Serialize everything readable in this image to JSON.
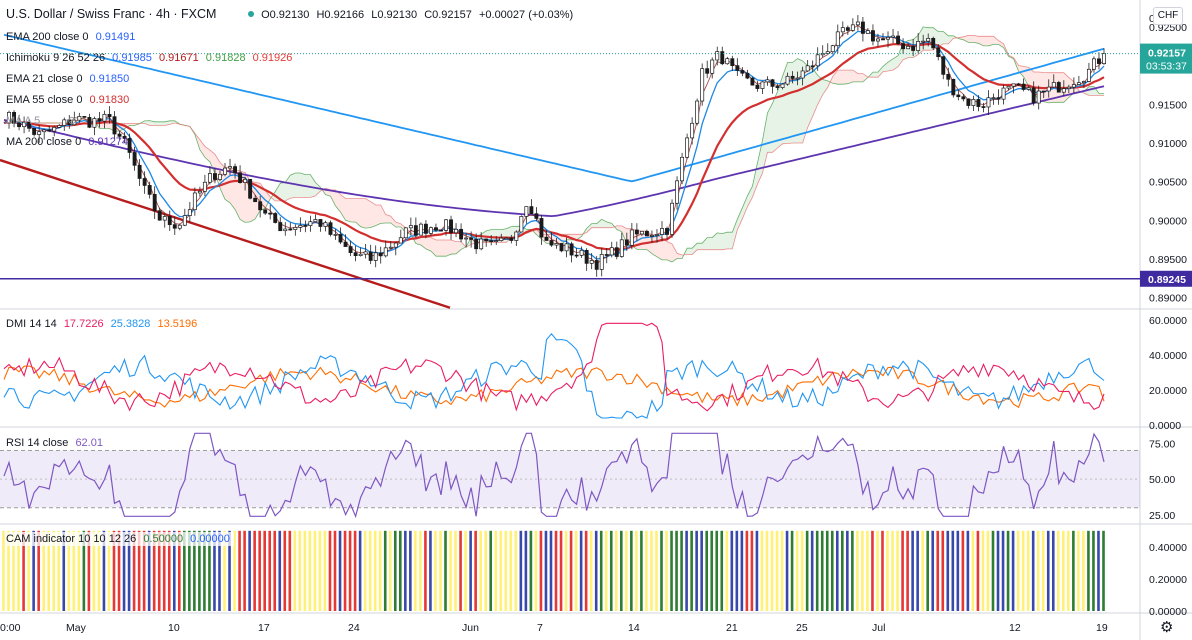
{
  "header": {
    "symbol_title": "U.S. Dollar / Swiss Franc · 4h · FXCM",
    "ohlc": {
      "open": "O0.92130",
      "high": "H0.92166",
      "low": "L0.92130",
      "close": "C0.92157",
      "change": "+0.00027 (+0.03%)"
    },
    "currency_button": "CHF"
  },
  "indicators": {
    "ema200": {
      "label": "EMA 200 close 0",
      "value": "0.91491",
      "color": "#2196f3"
    },
    "ichimoku": {
      "label": "Ichimoku 9 26 52 26",
      "v1": "0.91985",
      "v2": "0.91671",
      "v3": "0.91828",
      "v4": "0.91926"
    },
    "ema21": {
      "label": "EMA 21 close 0",
      "value": "0.91850",
      "color": "#2196f3"
    },
    "ema55": {
      "label": "EMA 55 close 0",
      "value": "0.91830",
      "color": "#d32f2f"
    },
    "ma5": {
      "label": "MA A 5"
    },
    "ma200": {
      "label": "MA 200 close 0",
      "value": "0.91274",
      "color": "#5e35b1"
    },
    "dmi": {
      "label": "DMI 14 14",
      "plus": "17.7226",
      "minus": "25.3828",
      "adx": "13.5196"
    },
    "rsi": {
      "label": "RSI 14 close",
      "value": "62.01"
    },
    "cam": {
      "label": "CAM indicator 10 10 12 26",
      "v1": "0.50000",
      "v2": "0.00000"
    }
  },
  "price_axis": {
    "ticks": [
      "0.92500",
      "0.92000",
      "0.91500",
      "0.91000",
      "0.90500",
      "0.90000",
      "0.89500",
      "0.89000"
    ],
    "top_tick": "0",
    "current_price": "0.92157",
    "countdown": "03:53:37",
    "horizontal_level": "0.89245",
    "current_price_color": "#26a69a",
    "level_color": "#3f2a9f"
  },
  "dmi_axis": [
    "60.0000",
    "40.0000",
    "20.0000",
    "0.0000"
  ],
  "rsi_axis": [
    "75.00",
    "50.00",
    "25.00"
  ],
  "cam_axis": [
    "0.40000",
    "0.20000",
    "0.00000"
  ],
  "time_axis": [
    "0:00",
    "May",
    "10",
    "17",
    "24",
    "Jun",
    "7",
    "14",
    "21",
    "25",
    "Jul",
    "12",
    "19"
  ],
  "chart_data": [
    {
      "type": "candlestick",
      "title": "U.S. Dollar / Swiss Franc · 4h · FXCM",
      "ylim": [
        0.8888,
        0.9285
      ],
      "horizontal_line": 0.89245,
      "x_labels": [
        "0:00",
        "May",
        "10",
        "17",
        "24",
        "Jun",
        "7",
        "14",
        "21",
        "25",
        "Jul",
        "12",
        "19"
      ],
      "close_path": [
        0.9135,
        0.9125,
        0.911,
        0.9118,
        0.9132,
        0.9128,
        0.913,
        0.9095,
        0.904,
        0.9,
        0.8995,
        0.903,
        0.906,
        0.907,
        0.904,
        0.9005,
        0.899,
        0.8995,
        0.9,
        0.8975,
        0.8955,
        0.895,
        0.8965,
        0.8985,
        0.899,
        0.8995,
        0.8985,
        0.897,
        0.8965,
        0.8975,
        0.903,
        0.897,
        0.8965,
        0.8955,
        0.8945,
        0.896,
        0.898,
        0.8985,
        0.899,
        0.9095,
        0.919,
        0.9215,
        0.9185,
        0.9175,
        0.9175,
        0.918,
        0.9195,
        0.922,
        0.924,
        0.925,
        0.9235,
        0.923,
        0.9225,
        0.9235,
        0.918,
        0.9155,
        0.915,
        0.9165,
        0.917,
        0.916,
        0.917,
        0.918,
        0.919,
        0.92157
      ],
      "series": [
        {
          "name": "EMA 21",
          "color": "#2196f3",
          "last": 0.9185
        },
        {
          "name": "EMA 55",
          "color": "#d32f2f",
          "last": 0.9183
        },
        {
          "name": "EMA 200",
          "color": "#2196f3",
          "last": 0.91491
        },
        {
          "name": "MA 200",
          "color": "#5e35b1",
          "last": 0.91274
        }
      ]
    },
    {
      "type": "line",
      "title": "DMI 14 14",
      "ylim": [
        0,
        65
      ],
      "series": [
        {
          "name": "+DI",
          "color": "#e91e63",
          "last": 17.7226
        },
        {
          "name": "-DI",
          "color": "#2196f3",
          "last": 25.3828
        },
        {
          "name": "ADX",
          "color": "#ff6d00",
          "last": 13.5196
        }
      ]
    },
    {
      "type": "line",
      "title": "RSI 14 close",
      "ylim": [
        20,
        85
      ],
      "band": [
        30,
        70
      ],
      "series": [
        {
          "name": "RSI",
          "color": "#7e57c2",
          "last": 62.01
        }
      ]
    },
    {
      "type": "bar",
      "title": "CAM indicator 10 10 12 26",
      "ylim": [
        0,
        0.5
      ],
      "bar_value": 0.5,
      "colors": {
        "green": "#2e7d32",
        "red": "#e53935",
        "blue": "#3949ab",
        "yellow": "#fff176"
      }
    }
  ]
}
